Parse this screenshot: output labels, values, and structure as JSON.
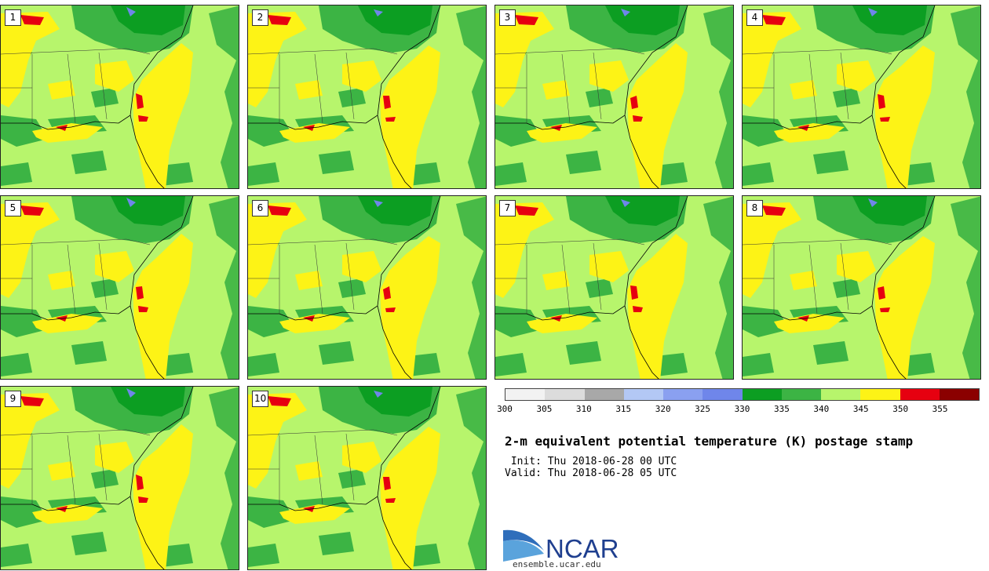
{
  "panels": [
    {
      "label": "1"
    },
    {
      "label": "2"
    },
    {
      "label": "3"
    },
    {
      "label": "4"
    },
    {
      "label": "5"
    },
    {
      "label": "6"
    },
    {
      "label": "7"
    },
    {
      "label": "8"
    },
    {
      "label": "9"
    },
    {
      "label": "10"
    }
  ],
  "colorbar": {
    "ticks": [
      "300",
      "305",
      "310",
      "315",
      "320",
      "325",
      "330",
      "335",
      "340",
      "345",
      "350",
      "355"
    ],
    "colors": [
      "#f2f2f2",
      "#dcdcdc",
      "#a8a8a8",
      "#b3c8f5",
      "#8aa0f0",
      "#6f86ea",
      "#0c9e22",
      "#3cb444",
      "#b7f56c",
      "#fdf316",
      "#e60010",
      "#8b0000"
    ]
  },
  "title": "2-m equivalent potential temperature (K) postage stamp",
  "init": " Init: Thu 2018-06-28 00 UTC",
  "valid": "Valid: Thu 2018-06-28 05 UTC",
  "logo": {
    "text": "NCAR",
    "icon": "ncar-logo-swoosh"
  },
  "site": "ensemble.ucar.edu"
}
